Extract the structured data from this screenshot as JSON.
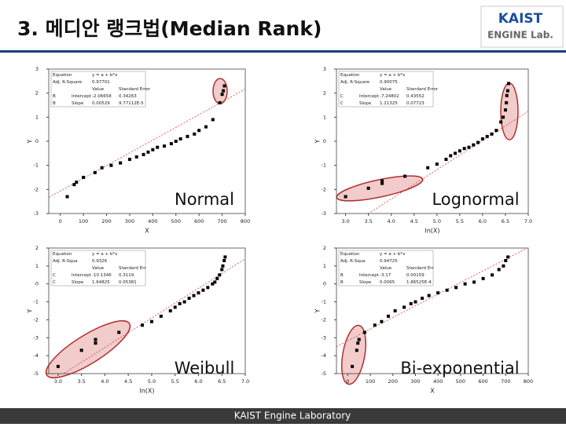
{
  "header": {
    "title": "3. 메디안 랭크법(Median Rank)",
    "logo_top": "KAIST",
    "logo_bottom": "ENGINE Lab."
  },
  "footer": {
    "text": "KAIST Engine Laboratory"
  },
  "chart_data": [
    {
      "type": "scatter",
      "label": "Normal",
      "xlabel": "X",
      "ylabel": "Y",
      "color": "#000000",
      "xlim": [
        -50,
        800
      ],
      "ylim": [
        -3,
        3
      ],
      "xticks": [
        0,
        100,
        200,
        300,
        400,
        500,
        600,
        700,
        800
      ],
      "yticks": [
        -3,
        -2,
        -1,
        0,
        1,
        2,
        3
      ],
      "x": [
        30,
        60,
        70,
        100,
        150,
        180,
        220,
        260,
        300,
        330,
        360,
        380,
        400,
        420,
        450,
        480,
        500,
        520,
        550,
        580,
        600,
        630,
        660,
        690,
        700,
        705,
        710
      ],
      "values": [
        -2.3,
        -1.8,
        -1.7,
        -1.5,
        -1.3,
        -1.1,
        -1.0,
        -0.9,
        -0.75,
        -0.65,
        -0.55,
        -0.45,
        -0.35,
        -0.25,
        -0.2,
        -0.1,
        0.0,
        0.1,
        0.2,
        0.3,
        0.45,
        0.6,
        0.9,
        1.6,
        1.95,
        2.1,
        2.3
      ],
      "fit_table": {
        "equation_label": "Equation",
        "equation": "y = a + b*x",
        "r2_label": "Adj. R-Square",
        "r2": 0.97701,
        "columns": [
          "Value",
          "Standard Error"
        ],
        "rows": [
          {
            "param": "B",
            "name": "Intercept",
            "value": -2.06658,
            "se": 0.34263
          },
          {
            "param": "B",
            "name": "Slope",
            "value": 0.00529,
            "se": "9.77112E-5"
          }
        ]
      }
    },
    {
      "type": "scatter",
      "label": "Lognormal",
      "xlabel": "ln(X)",
      "ylabel": "Y",
      "color": "#000000",
      "xlim": [
        2.8,
        7.0
      ],
      "ylim": [
        -3,
        3
      ],
      "xticks": [
        {
          "value": 3,
          "label": "3.0"
        },
        3.5,
        {
          "value": 4,
          "label": "4.0"
        },
        4.5,
        {
          "value": 5,
          "label": "5.0"
        },
        5.5,
        {
          "value": 6,
          "label": "6.0"
        },
        6.5,
        {
          "value": 7,
          "label": "7.0"
        }
      ],
      "yticks": [
        -3,
        -2,
        -1,
        0,
        1,
        2,
        3
      ],
      "x": [
        3.0,
        3.5,
        3.8,
        3.8,
        4.3,
        4.8,
        5.0,
        5.2,
        5.3,
        5.4,
        5.5,
        5.6,
        5.7,
        5.8,
        5.9,
        6.0,
        6.1,
        6.2,
        6.3,
        6.4,
        6.45,
        6.5,
        6.52,
        6.53,
        6.55,
        6.57
      ],
      "values": [
        -2.3,
        -1.95,
        -1.75,
        -1.65,
        -1.45,
        -1.1,
        -0.95,
        -0.75,
        -0.6,
        -0.5,
        -0.4,
        -0.3,
        -0.25,
        -0.15,
        -0.05,
        0.1,
        0.2,
        0.3,
        0.45,
        0.8,
        1.0,
        1.3,
        1.6,
        1.9,
        2.1,
        2.4
      ],
      "fit_table": {
        "equation_label": "Equation",
        "equation": "y = a + b*x",
        "r2_label": "Adj. R-Square",
        "r2": 0.90075,
        "columns": [
          "Value",
          "Standard Error"
        ],
        "rows": [
          {
            "param": "C",
            "name": "Intercept",
            "value": -7.24802,
            "se": 0.43552
          },
          {
            "param": "C",
            "name": "Slope",
            "value": 1.21325,
            "se": 0.07723
          }
        ]
      }
    },
    {
      "type": "scatter",
      "label": "Weibull",
      "xlabel": "ln(X)",
      "ylabel": "Y",
      "color": "#000000",
      "xlim": [
        2.8,
        7.0
      ],
      "ylim": [
        -5,
        2
      ],
      "xticks": [
        {
          "value": 3,
          "label": "3.0"
        },
        3.5,
        {
          "value": 4,
          "label": "4.0"
        },
        4.5,
        {
          "value": 5,
          "label": "5.0"
        },
        5.5,
        {
          "value": 6,
          "label": "6.0"
        },
        6.5,
        {
          "value": 7,
          "label": "7.0"
        }
      ],
      "yticks": [
        -5,
        -4,
        -3,
        -2,
        -1,
        0,
        1,
        2
      ],
      "x": [
        3.0,
        3.5,
        3.8,
        3.8,
        4.3,
        4.8,
        5.0,
        5.2,
        5.4,
        5.5,
        5.6,
        5.7,
        5.8,
        5.9,
        6.0,
        6.1,
        6.2,
        6.3,
        6.35,
        6.4,
        6.45,
        6.5,
        6.52,
        6.55,
        6.57
      ],
      "values": [
        -4.6,
        -3.7,
        -3.3,
        -3.1,
        -2.7,
        -2.3,
        -2.1,
        -1.8,
        -1.5,
        -1.3,
        -1.1,
        -1.0,
        -0.8,
        -0.65,
        -0.5,
        -0.35,
        -0.2,
        0.0,
        0.1,
        0.3,
        0.5,
        0.8,
        1.0,
        1.3,
        1.5
      ],
      "fit_table": {
        "equation_label": "Equation",
        "equation": "y = a + b*x",
        "r2_label": "Adj. R-Squa",
        "r2": 0.9326,
        "columns": [
          "Value",
          "Standard Err"
        ],
        "rows": [
          {
            "param": "C",
            "name": "Intercept",
            "value": -10.1346,
            "se": 0.3119
          },
          {
            "param": "C",
            "name": "Slope",
            "value": 1.64825,
            "se": 0.05381
          }
        ]
      }
    },
    {
      "type": "scatter",
      "label": "Bi-exponential",
      "xlabel": "X",
      "ylabel": "Y",
      "color": "#000000",
      "xlim": [
        -50,
        800
      ],
      "ylim": [
        -5,
        2
      ],
      "xticks": [
        0,
        100,
        200,
        300,
        400,
        500,
        600,
        700,
        800
      ],
      "yticks": [
        -5,
        -4,
        -3,
        -2,
        -1,
        0,
        1,
        2
      ],
      "x": [
        20,
        40,
        45,
        50,
        75,
        120,
        150,
        180,
        210,
        250,
        280,
        300,
        330,
        360,
        400,
        440,
        480,
        520,
        560,
        600,
        640,
        670,
        690,
        700,
        710
      ],
      "values": [
        -4.6,
        -3.7,
        -3.3,
        -3.1,
        -2.7,
        -2.3,
        -2.1,
        -1.8,
        -1.5,
        -1.3,
        -1.1,
        -1.0,
        -0.8,
        -0.65,
        -0.5,
        -0.35,
        -0.2,
        0.0,
        0.1,
        0.3,
        0.5,
        0.8,
        1.0,
        1.3,
        1.5
      ],
      "fit_table": {
        "equation_label": "Equation",
        "equation": "y = a + b*x",
        "r2_label": "Adj. R-Squa",
        "r2": 0.94725,
        "columns": [
          "Value",
          "Standard Err"
        ],
        "rows": [
          {
            "param": "B",
            "name": "Intercept",
            "value": -3.17,
            "se": 0.00159
          },
          {
            "param": "B",
            "name": "Slope",
            "value": 0.0065,
            "se": "1.86525E-4"
          }
        ]
      }
    }
  ]
}
